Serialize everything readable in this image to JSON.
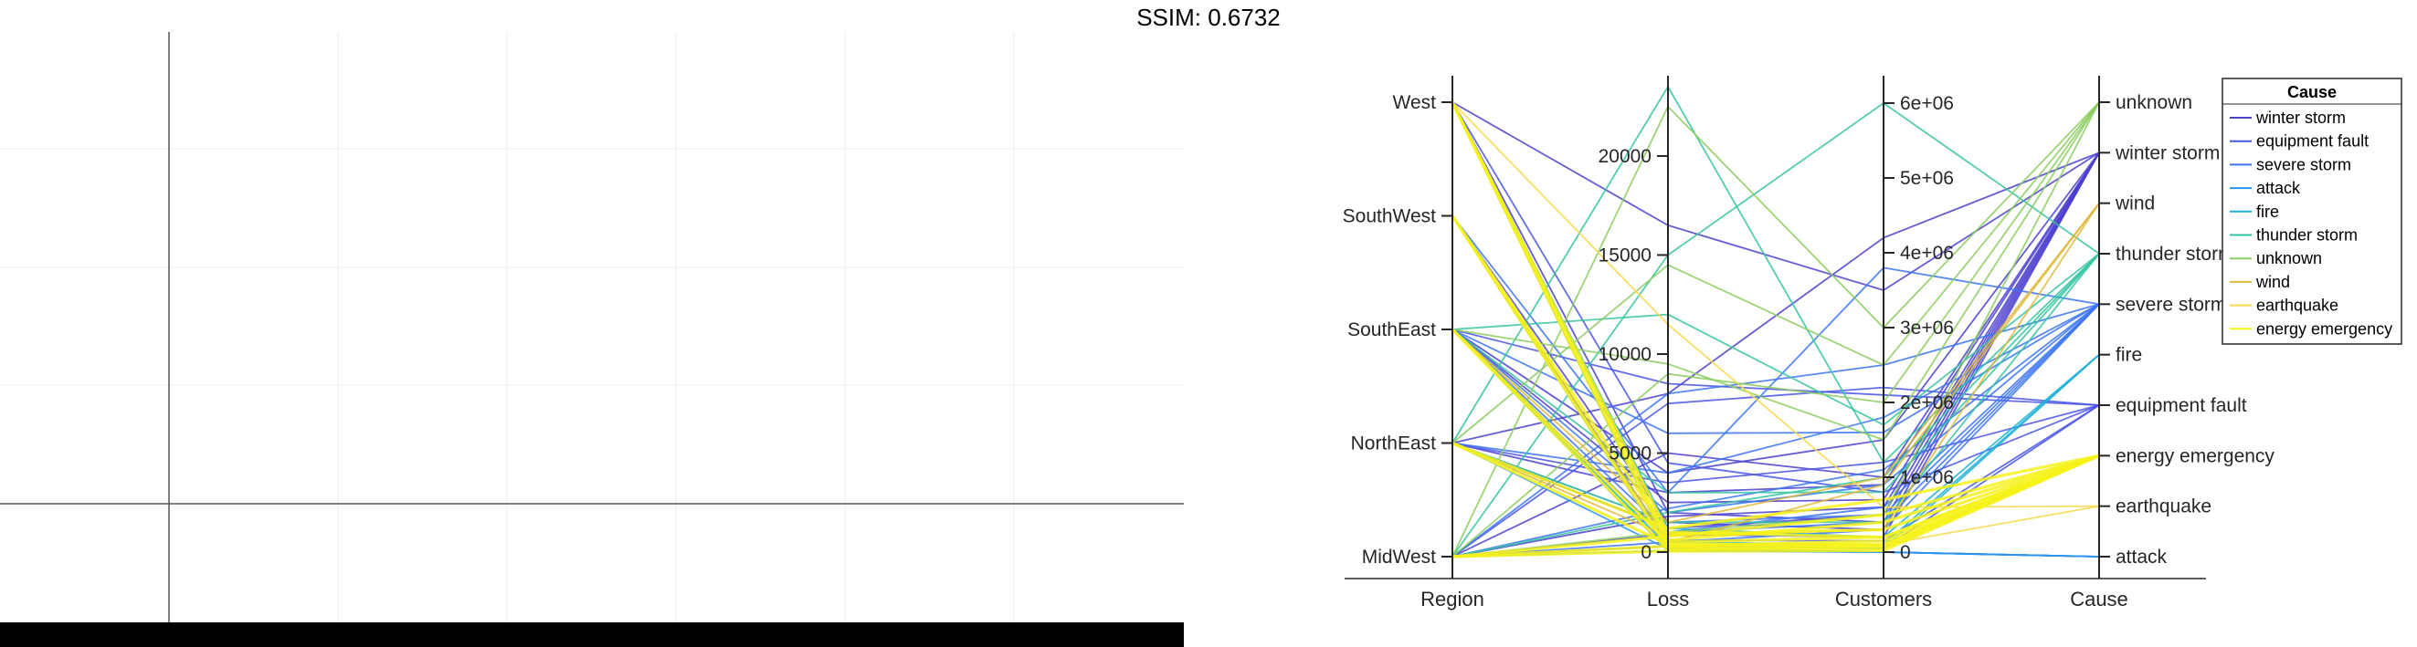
{
  "header": {
    "title": "SSIM: 0.6732"
  },
  "colors": {
    "left_bottom_bar": "#000000",
    "left_grid": "#ececec",
    "left_axes": "#555555"
  },
  "chart_data": [
    {
      "type": "line",
      "panel": "left",
      "title": "",
      "series": [],
      "grid": true,
      "xlabel": "",
      "ylabel": ""
    },
    {
      "type": "parallel_coordinates",
      "panel": "right",
      "title": "",
      "axes": [
        {
          "name": "Region",
          "type": "categorical",
          "categories": [
            "MidWest",
            "NorthEast",
            "SouthEast",
            "SouthWest",
            "West"
          ]
        },
        {
          "name": "Loss",
          "type": "numeric",
          "range": [
            0,
            23500
          ],
          "ticks": [
            0,
            5000,
            10000,
            15000,
            20000
          ],
          "tick_labels": [
            "0",
            "5000",
            "10000",
            "15000",
            "20000"
          ]
        },
        {
          "name": "Customers",
          "type": "numeric",
          "range": [
            0,
            6000000
          ],
          "ticks": [
            0,
            1000000,
            2000000,
            3000000,
            4000000,
            5000000,
            6000000
          ],
          "tick_labels": [
            "0",
            "1e+06",
            "2e+06",
            "3e+06",
            "4e+06",
            "5e+06",
            "6e+06"
          ]
        },
        {
          "name": "Cause",
          "type": "categorical",
          "categories": [
            "attack",
            "earthquake",
            "energy emergency",
            "equipment fault",
            "fire",
            "severe storm",
            "thunder storm",
            "wind",
            "winter storm",
            "unknown"
          ]
        }
      ],
      "legend": {
        "title": "Cause",
        "position": "top-right",
        "entries": [
          {
            "name": "winter storm",
            "color": "#4b3fcf"
          },
          {
            "name": "equipment fault",
            "color": "#4a55e6"
          },
          {
            "name": "severe storm",
            "color": "#3b74f2"
          },
          {
            "name": "attack",
            "color": "#2a93ee"
          },
          {
            "name": "fire",
            "color": "#1cb0d6"
          },
          {
            "name": "thunder storm",
            "color": "#35c4a0"
          },
          {
            "name": "unknown",
            "color": "#8ccd5f"
          },
          {
            "name": "wind",
            "color": "#e1b93a"
          },
          {
            "name": "earthquake",
            "color": "#f8d84a"
          },
          {
            "name": "energy emergency",
            "color": "#f6f21a"
          }
        ]
      },
      "lines": [
        {
          "cause": "winter storm",
          "values": [
            "West",
            16500,
            3500000,
            "winter storm"
          ]
        },
        {
          "cause": "winter storm",
          "values": [
            "West",
            2000,
            400000,
            "winter storm"
          ]
        },
        {
          "cause": "winter storm",
          "values": [
            "SouthWest",
            1500,
            300000,
            "winter storm"
          ]
        },
        {
          "cause": "winter storm",
          "values": [
            "NorthEast",
            8000,
            4200000,
            "winter storm"
          ]
        },
        {
          "cause": "winter storm",
          "values": [
            "NorthEast",
            3000,
            900000,
            "winter storm"
          ]
        },
        {
          "cause": "winter storm",
          "values": [
            "NorthEast",
            1200,
            500000,
            "winter storm"
          ]
        },
        {
          "cause": "winter storm",
          "values": [
            "SouthEast",
            4000,
            1500000,
            "winter storm"
          ]
        },
        {
          "cause": "winter storm",
          "values": [
            "SouthEast",
            2500,
            700000,
            "winter storm"
          ]
        },
        {
          "cause": "winter storm",
          "values": [
            "MidWest",
            5000,
            1000000,
            "winter storm"
          ]
        },
        {
          "cause": "winter storm",
          "values": [
            "MidWest",
            900,
            200000,
            "winter storm"
          ]
        },
        {
          "cause": "winter storm",
          "values": [
            "MidWest",
            1800,
            600000,
            "winter storm"
          ]
        },
        {
          "cause": "equipment fault",
          "values": [
            "West",
            4500,
            800000,
            "equipment fault"
          ]
        },
        {
          "cause": "equipment fault",
          "values": [
            "SouthEast",
            8500,
            2100000,
            "equipment fault"
          ]
        },
        {
          "cause": "equipment fault",
          "values": [
            "SouthEast",
            600,
            150000,
            "equipment fault"
          ]
        },
        {
          "cause": "equipment fault",
          "values": [
            "NorthEast",
            3500,
            1200000,
            "equipment fault"
          ]
        },
        {
          "cause": "equipment fault",
          "values": [
            "MidWest",
            7500,
            2200000,
            "equipment fault"
          ]
        },
        {
          "cause": "equipment fault",
          "values": [
            "MidWest",
            300,
            50000,
            "equipment fault"
          ]
        },
        {
          "cause": "severe storm",
          "values": [
            "SouthEast",
            6000,
            1600000,
            "severe storm"
          ]
        },
        {
          "cause": "severe storm",
          "values": [
            "SouthEast",
            2000,
            900000,
            "severe storm"
          ]
        },
        {
          "cause": "severe storm",
          "values": [
            "SouthEast",
            1000,
            600000,
            "severe storm"
          ]
        },
        {
          "cause": "severe storm",
          "values": [
            "NorthEast",
            4000,
            1800000,
            "severe storm"
          ]
        },
        {
          "cause": "severe storm",
          "values": [
            "NorthEast",
            1500,
            500000,
            "severe storm"
          ]
        },
        {
          "cause": "severe storm",
          "values": [
            "MidWest",
            8000,
            2500000,
            "severe storm"
          ]
        },
        {
          "cause": "severe storm",
          "values": [
            "MidWest",
            2200,
            1100000,
            "severe storm"
          ]
        },
        {
          "cause": "severe storm",
          "values": [
            "MidWest",
            500,
            300000,
            "severe storm"
          ]
        },
        {
          "cause": "severe storm",
          "values": [
            "SouthWest",
            3000,
            3800000,
            "severe storm"
          ]
        },
        {
          "cause": "severe storm",
          "values": [
            "West",
            1000,
            400000,
            "severe storm"
          ]
        },
        {
          "cause": "attack",
          "values": [
            "West",
            200,
            0,
            "attack"
          ]
        },
        {
          "cause": "attack",
          "values": [
            "SouthWest",
            100,
            0,
            "attack"
          ]
        },
        {
          "cause": "attack",
          "values": [
            "SouthEast",
            50,
            0,
            "attack"
          ]
        },
        {
          "cause": "attack",
          "values": [
            "NorthEast",
            150,
            0,
            "attack"
          ]
        },
        {
          "cause": "attack",
          "values": [
            "MidWest",
            80,
            0,
            "attack"
          ]
        },
        {
          "cause": "fire",
          "values": [
            "West",
            1200,
            200000,
            "fire"
          ]
        },
        {
          "cause": "fire",
          "values": [
            "SouthWest",
            500,
            100000,
            "fire"
          ]
        },
        {
          "cause": "fire",
          "values": [
            "SouthEast",
            300,
            50000,
            "fire"
          ]
        },
        {
          "cause": "thunder storm",
          "values": [
            "NorthEast",
            23500,
            1200000,
            "thunder storm"
          ]
        },
        {
          "cause": "thunder storm",
          "values": [
            "MidWest",
            15000,
            6000000,
            "thunder storm"
          ]
        },
        {
          "cause": "thunder storm",
          "values": [
            "SouthEast",
            12000,
            1700000,
            "thunder storm"
          ]
        },
        {
          "cause": "thunder storm",
          "values": [
            "SouthEast",
            3000,
            800000,
            "thunder storm"
          ]
        },
        {
          "cause": "thunder storm",
          "values": [
            "NorthEast",
            1500,
            400000,
            "thunder storm"
          ]
        },
        {
          "cause": "thunder storm",
          "values": [
            "MidWest",
            2000,
            1000000,
            "thunder storm"
          ]
        },
        {
          "cause": "unknown",
          "values": [
            "MidWest",
            22500,
            3000000,
            "unknown"
          ]
        },
        {
          "cause": "unknown",
          "values": [
            "NorthEast",
            14500,
            2500000,
            "unknown"
          ]
        },
        {
          "cause": "unknown",
          "values": [
            "MidWest",
            9000,
            2000000,
            "unknown"
          ]
        },
        {
          "cause": "unknown",
          "values": [
            "SouthEast",
            9500,
            1500000,
            "unknown"
          ]
        },
        {
          "cause": "unknown",
          "values": [
            "MidWest",
            1000,
            500000,
            "unknown"
          ]
        },
        {
          "cause": "wind",
          "values": [
            "SouthWest",
            500,
            900000,
            "wind"
          ]
        },
        {
          "cause": "wind",
          "values": [
            "SouthEast",
            1500,
            1000000,
            "wind"
          ]
        },
        {
          "cause": "wind",
          "values": [
            "NorthEast",
            800,
            300000,
            "wind"
          ]
        },
        {
          "cause": "earthquake",
          "values": [
            "West",
            11500,
            600000,
            "earthquake"
          ]
        },
        {
          "cause": "earthquake",
          "values": [
            "SouthWest",
            300,
            100000,
            "earthquake"
          ]
        },
        {
          "cause": "energy emergency",
          "values": [
            "West",
            1000,
            200000,
            "energy emergency"
          ]
        },
        {
          "cause": "energy emergency",
          "values": [
            "West",
            300,
            100000,
            "energy emergency"
          ]
        },
        {
          "cause": "energy emergency",
          "values": [
            "West",
            600,
            400000,
            "energy emergency"
          ]
        },
        {
          "cause": "energy emergency",
          "values": [
            "SouthWest",
            200,
            50000,
            "energy emergency"
          ]
        },
        {
          "cause": "energy emergency",
          "values": [
            "SouthWest",
            900,
            300000,
            "energy emergency"
          ]
        },
        {
          "cause": "energy emergency",
          "values": [
            "SouthEast",
            500,
            200000,
            "energy emergency"
          ]
        },
        {
          "cause": "energy emergency",
          "values": [
            "SouthEast",
            100,
            80000,
            "energy emergency"
          ]
        },
        {
          "cause": "energy emergency",
          "values": [
            "NorthEast",
            400,
            100000,
            "energy emergency"
          ]
        },
        {
          "cause": "energy emergency",
          "values": [
            "NorthEast",
            1200,
            700000,
            "energy emergency"
          ]
        },
        {
          "cause": "energy emergency",
          "values": [
            "MidWest",
            300,
            150000,
            "energy emergency"
          ]
        },
        {
          "cause": "energy emergency",
          "values": [
            "MidWest",
            800,
            500000,
            "energy emergency"
          ]
        },
        {
          "cause": "energy emergency",
          "values": [
            "MidWest",
            50,
            20000,
            "energy emergency"
          ]
        }
      ]
    }
  ]
}
